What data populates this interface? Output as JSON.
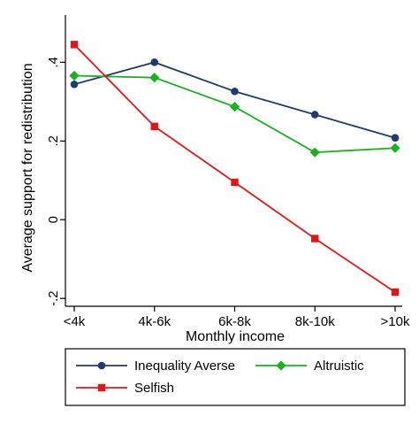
{
  "chart_data": {
    "type": "line",
    "title": "",
    "xlabel": "Monthly income",
    "ylabel": "Average support for redistribution",
    "categories": [
      "<4k",
      "4k-6k",
      "6k-8k",
      "8k-10k",
      ">10k"
    ],
    "ylim": [
      -0.22,
      0.52
    ],
    "yticks": [
      -0.2,
      0,
      0.2,
      0.4
    ],
    "ytick_labels": [
      "-.2",
      "0",
      ".2",
      ".4"
    ],
    "grid": false,
    "legend_position": "bottom",
    "series": [
      {
        "name": "Inequality Averse",
        "color": "#1f3b6f",
        "marker": "circle",
        "values": [
          0.344,
          0.4,
          0.326,
          0.267,
          0.208
        ]
      },
      {
        "name": "Altruistic",
        "color": "#19b21e",
        "marker": "diamond",
        "values": [
          0.366,
          0.361,
          0.287,
          0.171,
          0.182
        ]
      },
      {
        "name": "Selfish",
        "color": "#e11717",
        "marker": "square",
        "values": [
          0.445,
          0.237,
          0.095,
          -0.048,
          -0.184
        ]
      }
    ]
  }
}
